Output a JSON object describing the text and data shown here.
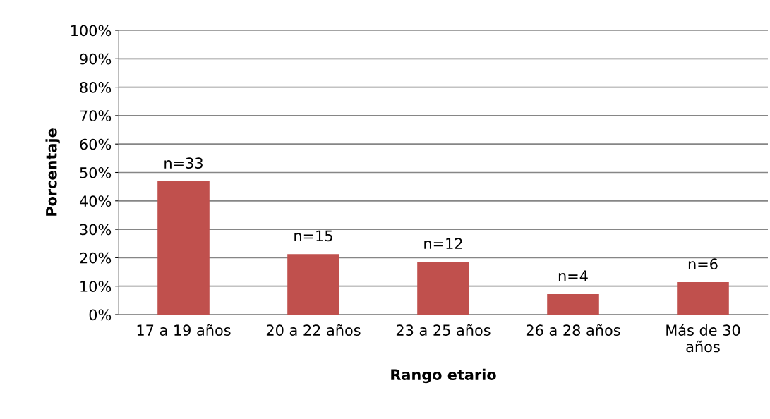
{
  "chart_data": {
    "type": "bar",
    "xlabel": "Rango etario",
    "ylabel": "Porcentaje",
    "categories": [
      "17 a 19 años",
      "20 a 22 años",
      "23 a 25 años",
      "26 a 28 años",
      "Más de 30\naños"
    ],
    "values": [
      46.9,
      21.3,
      18.6,
      7.2,
      11.4
    ],
    "annotations": [
      {
        "text": "n=33",
        "x": "17 a 19 años",
        "y": 46.9
      },
      {
        "text": "n=15",
        "x": "20 a 22 años",
        "y": 21.3
      },
      {
        "text": "n=12",
        "x": "23 a 25 años",
        "y": 18.6
      },
      {
        "text": "n=4",
        "x": "26 a 28 años",
        "y": 7.2
      },
      {
        "text": "n=6",
        "x": "Más de 30\naños",
        "y": 11.4
      }
    ],
    "color": "#c0504d",
    "ylim": [
      0,
      100
    ],
    "yticks": [
      {
        "value": 0,
        "label": "0%"
      },
      {
        "value": 10,
        "label": "10%"
      },
      {
        "value": 20,
        "label": "20%"
      },
      {
        "value": 30,
        "label": "30%"
      },
      {
        "value": 40,
        "label": "40%"
      },
      {
        "value": 50,
        "label": "50%"
      },
      {
        "value": 60,
        "label": "60%"
      },
      {
        "value": 70,
        "label": "70%"
      },
      {
        "value": 80,
        "label": "80%"
      },
      {
        "value": 90,
        "label": "90%"
      },
      {
        "value": 100,
        "label": "100%"
      }
    ],
    "grid": "y",
    "legend": false
  }
}
